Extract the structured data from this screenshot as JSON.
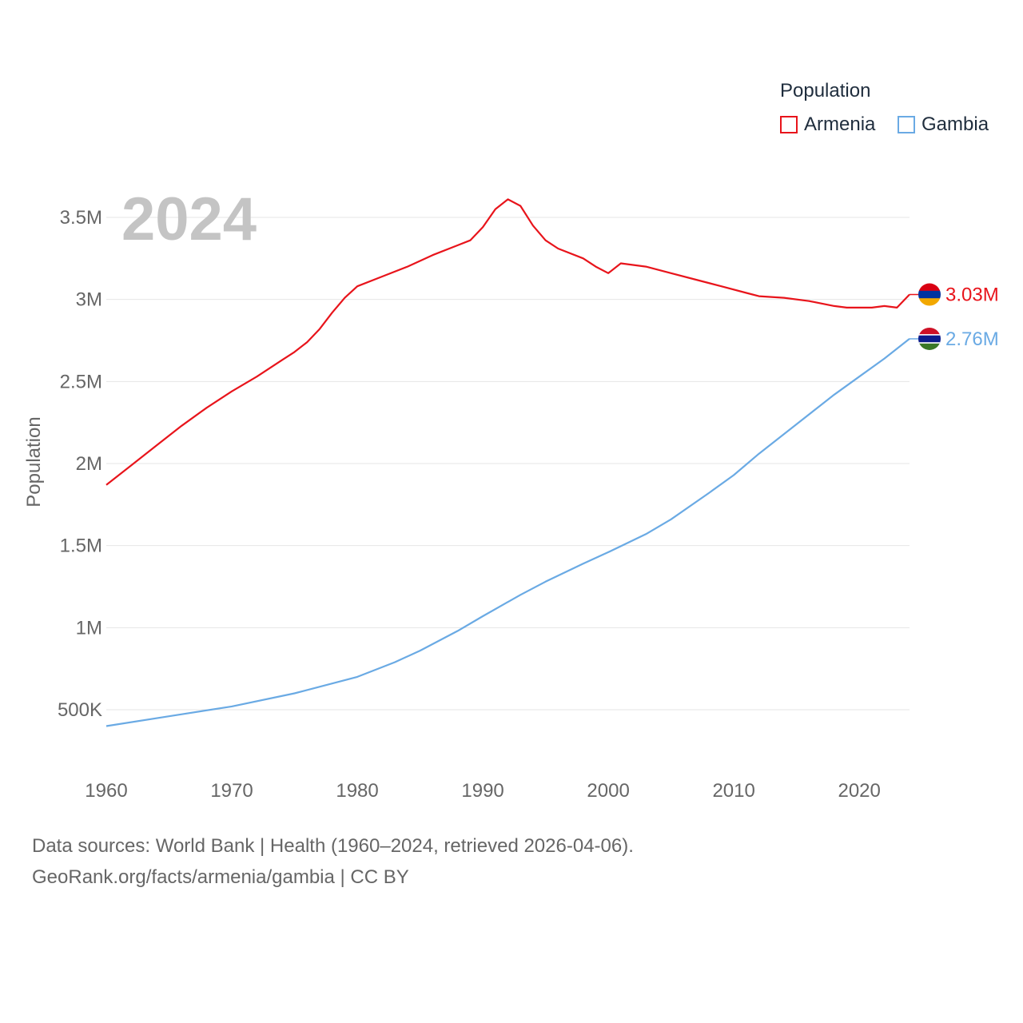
{
  "legend": {
    "title": "Population",
    "items": [
      {
        "label": "Armenia",
        "color": "#e8141b"
      },
      {
        "label": "Gambia",
        "color": "#6aaae4"
      }
    ]
  },
  "year_label": "2024",
  "footer": {
    "line1": "Data sources: World Bank | Health (1960–2024, retrieved 2026-04-06).",
    "line2": "GeoRank.org/facts/armenia/gambia | CC BY"
  },
  "chart_data": {
    "type": "line",
    "title": "Population",
    "xlabel": "",
    "ylabel": "Population",
    "xlim": [
      1960,
      2024
    ],
    "ylim": [
      300000,
      3800000
    ],
    "x_ticks": [
      1960,
      1970,
      1980,
      1990,
      2000,
      2010,
      2020
    ],
    "y_ticks": [
      {
        "value": 500000,
        "label": "500K"
      },
      {
        "value": 1000000,
        "label": "1M"
      },
      {
        "value": 1500000,
        "label": "1.5M"
      },
      {
        "value": 2000000,
        "label": "2M"
      },
      {
        "value": 2500000,
        "label": "2.5M"
      },
      {
        "value": 3000000,
        "label": "3M"
      },
      {
        "value": 3500000,
        "label": "3.5M"
      }
    ],
    "grid": true,
    "series": [
      {
        "name": "Armenia",
        "color": "#e8141b",
        "end_label": "3.03M",
        "points": [
          [
            1960,
            1870000
          ],
          [
            1962,
            1990000
          ],
          [
            1964,
            2110000
          ],
          [
            1966,
            2230000
          ],
          [
            1968,
            2340000
          ],
          [
            1970,
            2440000
          ],
          [
            1972,
            2530000
          ],
          [
            1974,
            2630000
          ],
          [
            1975,
            2680000
          ],
          [
            1976,
            2740000
          ],
          [
            1977,
            2820000
          ],
          [
            1978,
            2920000
          ],
          [
            1979,
            3010000
          ],
          [
            1980,
            3080000
          ],
          [
            1982,
            3140000
          ],
          [
            1984,
            3200000
          ],
          [
            1986,
            3270000
          ],
          [
            1988,
            3330000
          ],
          [
            1989,
            3360000
          ],
          [
            1990,
            3440000
          ],
          [
            1991,
            3550000
          ],
          [
            1992,
            3610000
          ],
          [
            1993,
            3570000
          ],
          [
            1994,
            3450000
          ],
          [
            1995,
            3360000
          ],
          [
            1996,
            3310000
          ],
          [
            1998,
            3250000
          ],
          [
            1999,
            3200000
          ],
          [
            2000,
            3160000
          ],
          [
            2001,
            3220000
          ],
          [
            2003,
            3200000
          ],
          [
            2005,
            3160000
          ],
          [
            2007,
            3120000
          ],
          [
            2009,
            3080000
          ],
          [
            2011,
            3040000
          ],
          [
            2012,
            3020000
          ],
          [
            2014,
            3010000
          ],
          [
            2016,
            2990000
          ],
          [
            2018,
            2960000
          ],
          [
            2019,
            2950000
          ],
          [
            2021,
            2950000
          ],
          [
            2022,
            2960000
          ],
          [
            2023,
            2950000
          ],
          [
            2024,
            3030000
          ]
        ]
      },
      {
        "name": "Gambia",
        "color": "#6aaae4",
        "end_label": "2.76M",
        "points": [
          [
            1960,
            400000
          ],
          [
            1965,
            460000
          ],
          [
            1970,
            520000
          ],
          [
            1975,
            600000
          ],
          [
            1980,
            700000
          ],
          [
            1983,
            790000
          ],
          [
            1985,
            860000
          ],
          [
            1988,
            980000
          ],
          [
            1990,
            1070000
          ],
          [
            1993,
            1200000
          ],
          [
            1995,
            1280000
          ],
          [
            1998,
            1390000
          ],
          [
            2000,
            1460000
          ],
          [
            2003,
            1570000
          ],
          [
            2005,
            1660000
          ],
          [
            2008,
            1820000
          ],
          [
            2010,
            1930000
          ],
          [
            2012,
            2060000
          ],
          [
            2015,
            2240000
          ],
          [
            2018,
            2420000
          ],
          [
            2020,
            2530000
          ],
          [
            2022,
            2640000
          ],
          [
            2024,
            2760000
          ]
        ]
      }
    ]
  }
}
